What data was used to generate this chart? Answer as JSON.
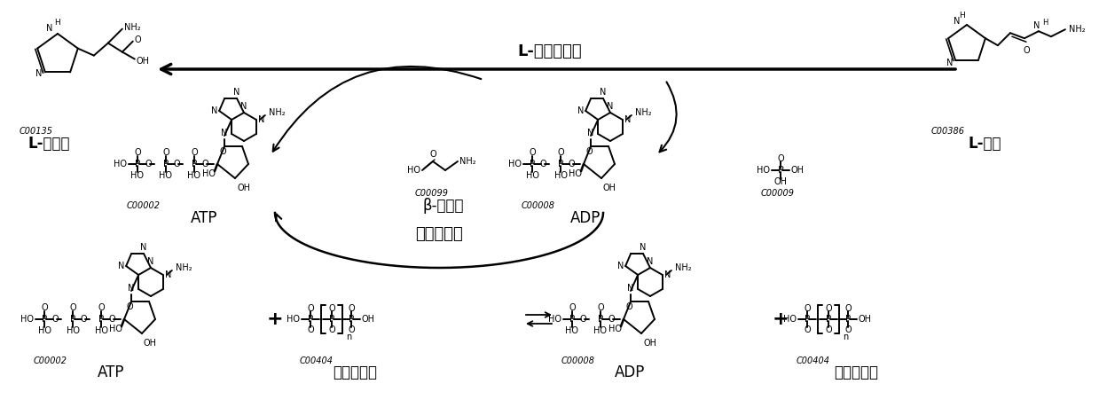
{
  "bg_color": "#ffffff",
  "fig_width": 12.39,
  "fig_height": 4.68,
  "dpi": 100,
  "top_enzyme": "L-肌肽合成酶",
  "bottom_enzyme": "聚磷酸激酶",
  "his_id": "C00135",
  "his_name": "L-组氨酸",
  "car_id": "C00386",
  "car_name": "L-肌肽",
  "atp_id": "C00002",
  "atp_name": "ATP",
  "beta_id": "C00099",
  "beta_name": "β-丙氨酸",
  "adp_id": "C00008",
  "adp_name": "ADP",
  "pi_id": "C00009",
  "poly_id": "C00404",
  "poly_name": "多聚磷酸盐",
  "plus": "+",
  "eq_arrow": "⇌"
}
